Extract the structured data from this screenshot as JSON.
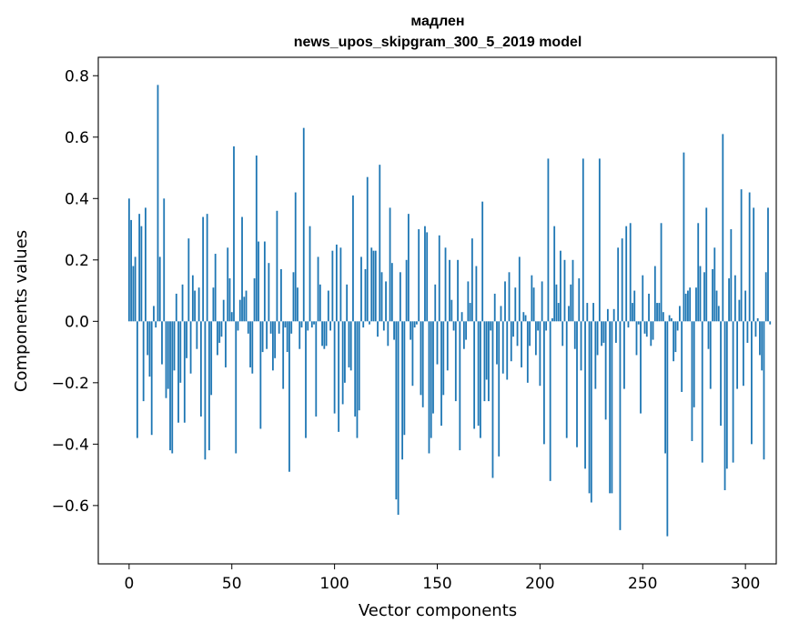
{
  "chart_data": {
    "type": "bar",
    "title": "мадлен",
    "subtitle": "news_upos_skipgram_300_5_2019 model",
    "xlabel": "Vector components",
    "ylabel": "Components values",
    "xlim": [
      -15,
      315
    ],
    "ylim": [
      -0.79,
      0.86
    ],
    "x_ticks": [
      0,
      50,
      100,
      150,
      200,
      250,
      300
    ],
    "y_ticks": [
      -0.6,
      -0.4,
      -0.2,
      0.0,
      0.2,
      0.4,
      0.6,
      0.8
    ],
    "x_tick_labels": [
      "0",
      "50",
      "100",
      "150",
      "200",
      "250",
      "300"
    ],
    "y_tick_labels": [
      "−0.6",
      "−0.4",
      "−0.2",
      "0.0",
      "0.2",
      "0.4",
      "0.6",
      "0.8"
    ],
    "bar_color": "#1f77b4",
    "grid": false,
    "values": [
      0.4,
      0.33,
      0.18,
      0.21,
      -0.38,
      0.35,
      0.31,
      -0.26,
      0.37,
      -0.11,
      -0.18,
      -0.37,
      0.05,
      -0.02,
      0.77,
      0.21,
      -0.14,
      0.4,
      -0.25,
      -0.22,
      -0.42,
      -0.43,
      -0.16,
      0.09,
      -0.33,
      -0.2,
      0.12,
      -0.33,
      -0.12,
      0.27,
      -0.17,
      0.15,
      0.1,
      -0.09,
      0.11,
      -0.31,
      0.34,
      -0.45,
      0.35,
      -0.42,
      -0.24,
      0.11,
      0.22,
      -0.11,
      -0.07,
      -0.05,
      0.07,
      -0.15,
      0.24,
      0.14,
      0.03,
      0.57,
      -0.43,
      -0.03,
      0.07,
      0.34,
      0.08,
      0.1,
      -0.04,
      -0.15,
      -0.17,
      0.14,
      0.54,
      0.26,
      -0.35,
      -0.1,
      0.26,
      -0.09,
      0.19,
      -0.04,
      -0.16,
      -0.12,
      0.36,
      -0.04,
      0.17,
      -0.22,
      -0.02,
      -0.1,
      -0.49,
      -0.04,
      0.16,
      0.42,
      0.11,
      -0.09,
      -0.02,
      0.63,
      -0.38,
      -0.03,
      0.31,
      -0.02,
      -0.01,
      -0.31,
      0.21,
      0.12,
      -0.08,
      -0.09,
      -0.08,
      0.1,
      -0.03,
      0.23,
      -0.3,
      0.25,
      -0.36,
      0.24,
      -0.27,
      -0.2,
      0.12,
      -0.15,
      -0.16,
      0.41,
      -0.31,
      -0.38,
      -0.29,
      0.21,
      -0.02,
      0.17,
      0.47,
      -0.01,
      0.24,
      0.23,
      0.23,
      -0.05,
      0.51,
      0.16,
      -0.03,
      0.13,
      -0.08,
      0.37,
      0.19,
      -0.06,
      -0.58,
      -0.63,
      0.16,
      -0.45,
      -0.37,
      0.2,
      0.35,
      -0.06,
      -0.21,
      -0.02,
      -0.01,
      0.3,
      -0.24,
      -0.28,
      0.31,
      0.29,
      -0.43,
      -0.38,
      -0.3,
      0.12,
      -0.14,
      0.28,
      -0.34,
      -0.24,
      0.24,
      -0.16,
      0.2,
      0.07,
      -0.03,
      -0.26,
      0.2,
      -0.42,
      0.03,
      -0.09,
      -0.06,
      0.13,
      0.06,
      0.27,
      -0.35,
      0.18,
      -0.34,
      -0.38,
      0.39,
      -0.26,
      -0.19,
      -0.26,
      -0.03,
      -0.51,
      0.09,
      -0.14,
      -0.44,
      0.05,
      -0.17,
      0.13,
      -0.19,
      0.16,
      -0.13,
      -0.05,
      0.11,
      -0.08,
      0.21,
      -0.15,
      0.03,
      0.02,
      -0.2,
      -0.08,
      0.15,
      0.11,
      -0.11,
      -0.03,
      -0.21,
      0.13,
      -0.4,
      -0.03,
      0.53,
      -0.52,
      0.01,
      0.31,
      0.12,
      0.06,
      0.23,
      -0.08,
      0.2,
      -0.38,
      0.05,
      0.12,
      0.2,
      -0.09,
      -0.41,
      0.14,
      -0.16,
      0.53,
      -0.48,
      0.06,
      -0.56,
      -0.59,
      0.06,
      -0.22,
      -0.11,
      0.53,
      -0.08,
      -0.07,
      -0.32,
      0.04,
      -0.56,
      -0.56,
      0.04,
      -0.07,
      0.24,
      -0.68,
      0.27,
      -0.22,
      0.31,
      -0.02,
      0.32,
      0.06,
      0.1,
      -0.11,
      -0.01,
      -0.3,
      0.15,
      -0.04,
      -0.05,
      0.09,
      -0.08,
      -0.06,
      0.18,
      0.06,
      0.06,
      0.32,
      0.03,
      -0.43,
      -0.7,
      0.02,
      0.01,
      -0.13,
      -0.1,
      -0.03,
      0.05,
      -0.23,
      0.55,
      0.09,
      0.1,
      0.11,
      -0.39,
      -0.28,
      0.11,
      0.32,
      0.18,
      -0.46,
      0.16,
      0.37,
      -0.09,
      -0.22,
      0.17,
      0.24,
      0.1,
      0.05,
      -0.34,
      0.61,
      -0.55,
      -0.48,
      0.14,
      0.3,
      -0.46,
      0.15,
      -0.22,
      0.07,
      0.43,
      -0.21,
      0.1,
      -0.07,
      0.42,
      -0.4,
      0.37,
      -0.05,
      0.01,
      -0.11,
      -0.16,
      -0.45,
      0.16,
      0.37,
      -0.01
    ]
  }
}
